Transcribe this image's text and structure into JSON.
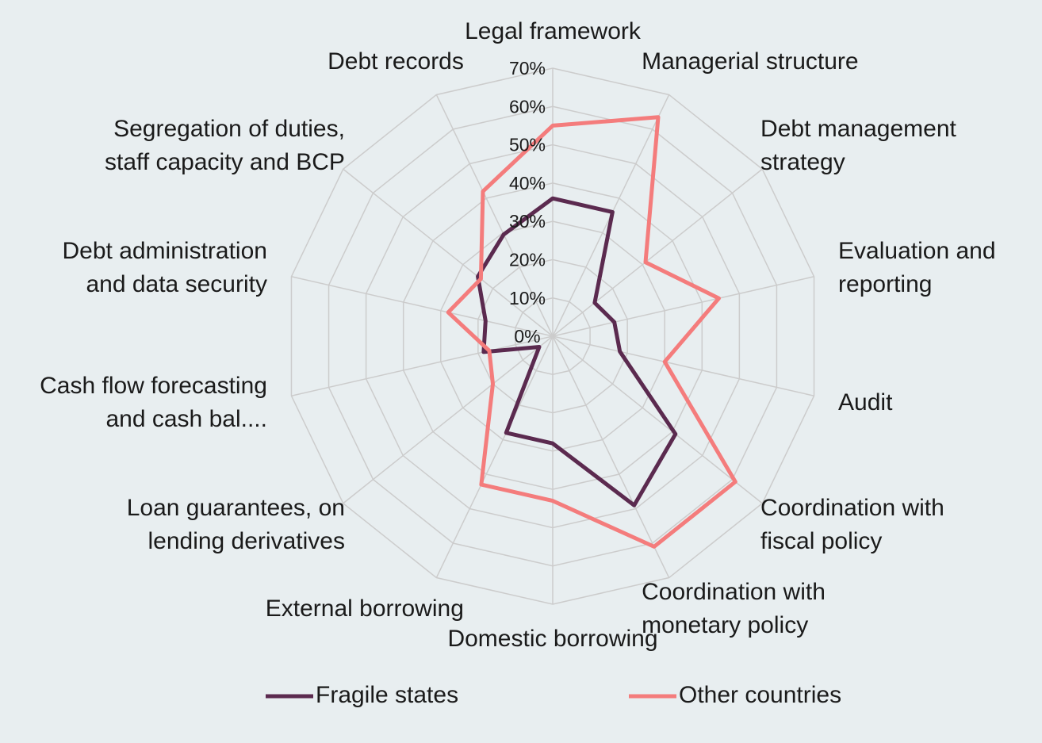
{
  "chart_data": {
    "type": "radar",
    "categories": [
      "Legal framework",
      "Managerial structure",
      "Debt management\nstrategy",
      "Evaluation and\nreporting",
      "Audit",
      "Coordination with\nfiscal policy",
      "Coordination with\nmonetary policy",
      "Domestic borrowing",
      "External borrowing",
      "Loan guarantees, on\nlending  derivatives",
      "Cash flow forecasting\nand cash bal....",
      "Debt administration\nand data security",
      "Segregation of duties,\nstaff capacity and BCP",
      "Debt records"
    ],
    "series": [
      {
        "name": "Fragile states",
        "color": "#5b2a4f",
        "values": [
          36,
          36,
          14,
          16.5,
          18,
          41,
          49,
          28,
          28,
          4.5,
          18.5,
          18,
          25,
          29.5
        ]
      },
      {
        "name": "Other countries",
        "color": "#f47c7c",
        "values": [
          55,
          63.5,
          31,
          44.5,
          30,
          61,
          61,
          43,
          43,
          20,
          17,
          28,
          24,
          42
        ]
      }
    ],
    "ylim": [
      0,
      70
    ],
    "yticks": [
      {
        "value": 0,
        "label": "0%"
      },
      {
        "value": 10,
        "label": "10%"
      },
      {
        "value": 20,
        "label": "20%"
      },
      {
        "value": 30,
        "label": "30%"
      },
      {
        "value": 40,
        "label": "40%"
      },
      {
        "value": 50,
        "label": "50%"
      },
      {
        "value": 60,
        "label": "60%"
      },
      {
        "value": 70,
        "label": "70%"
      }
    ],
    "grid": true,
    "legend": "bottom"
  }
}
